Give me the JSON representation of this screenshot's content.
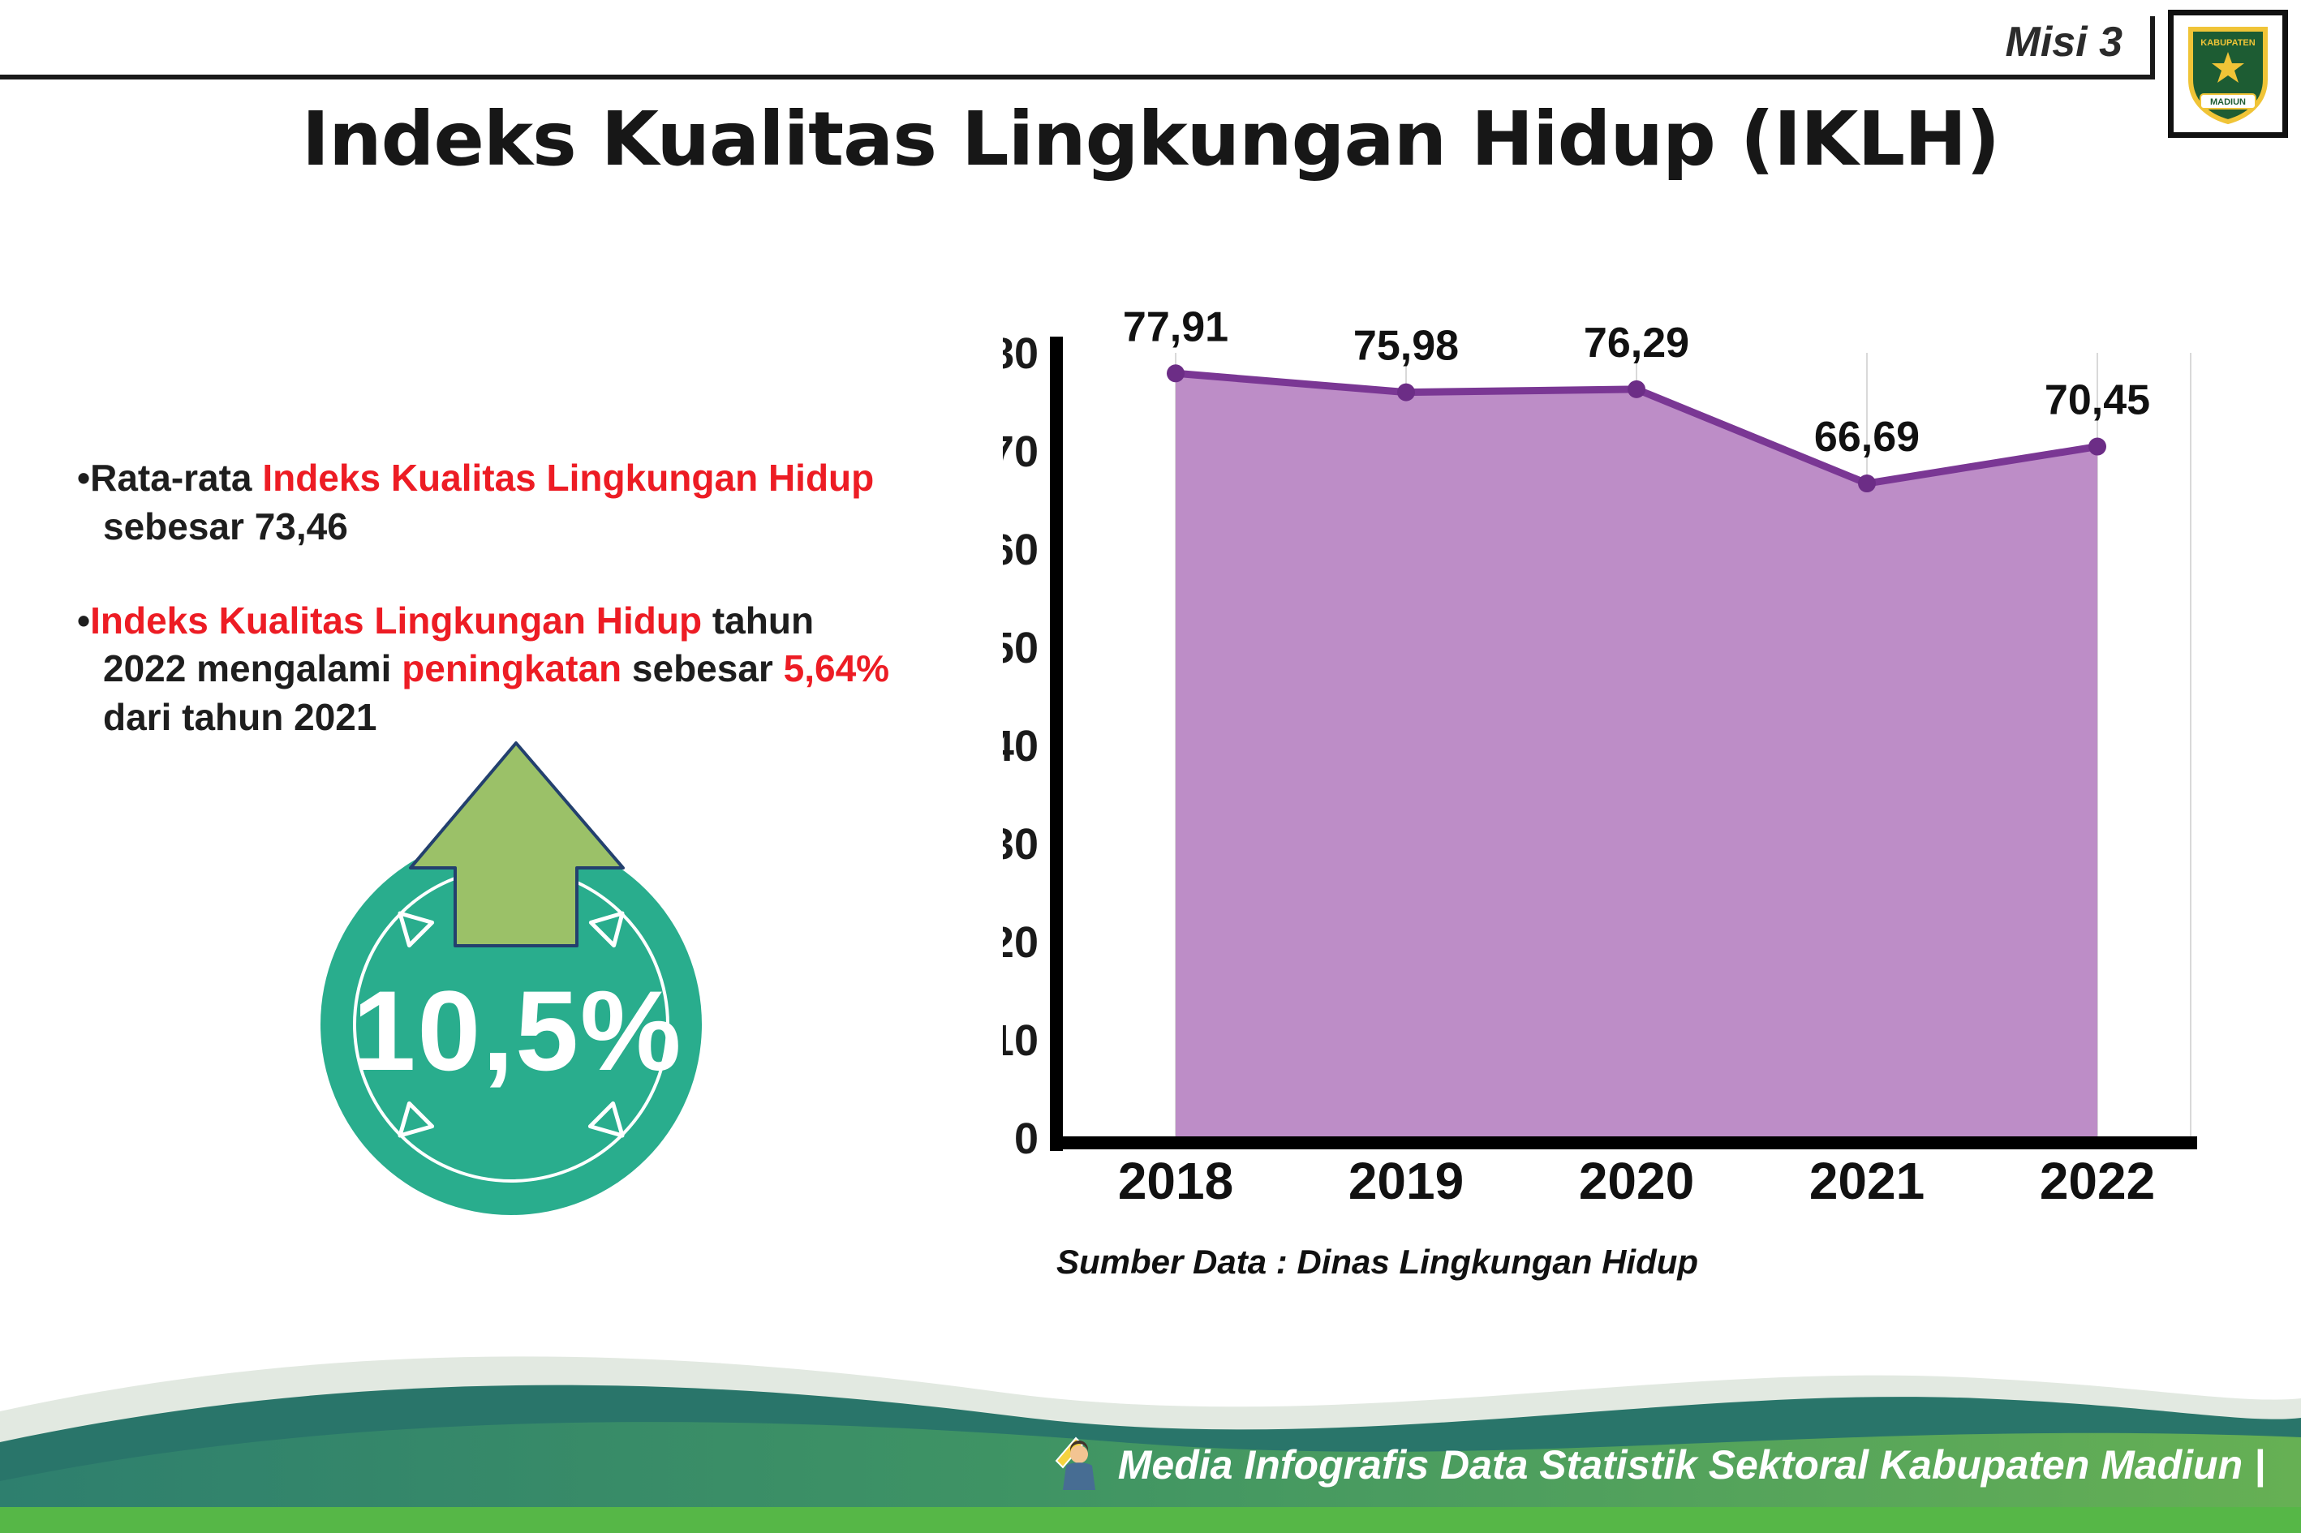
{
  "header": {
    "misi_label": "Misi 3",
    "title": "Indeks Kualitas Lingkungan Hidup (IKLH)",
    "logo": {
      "top_text": "KABUPATEN",
      "bottom_text": "MADIUN"
    }
  },
  "bullets": {
    "marker": "•",
    "b1_prefix": "Rata-rata ",
    "b1_highlight": "Indeks Kualitas Lingkungan Hidup",
    "b1_suffix": " sebesar 73,46",
    "b2_highlight1": "Indeks Kualitas Lingkungan Hidup",
    "b2_text1": " tahun 2022 mengalami ",
    "b2_highlight2": "peningkatan",
    "b2_text2": " sebesar ",
    "b2_highlight3": "5,64%",
    "b2_text3": " dari tahun 2021"
  },
  "badge": {
    "value": "10,5%",
    "circle_color": "#29ad8d",
    "arrow_color": "#9bc168"
  },
  "chart": {
    "source_note": "Sumber Data : Dinas Lingkungan Hidup"
  },
  "chart_data": {
    "type": "area",
    "title": "Indeks Kualitas Lingkungan Hidup (IKLH)",
    "categories": [
      "2018",
      "2019",
      "2020",
      "2021",
      "2022"
    ],
    "values": [
      77.91,
      75.98,
      76.29,
      66.69,
      70.45
    ],
    "value_labels": [
      "77,91",
      "75,98",
      "76,29",
      "66,69",
      "70,45"
    ],
    "xlabel": "",
    "ylabel": "",
    "ylim": [
      0,
      80
    ],
    "ytick_step": 10,
    "grid": "vertical-light",
    "legend": "none",
    "colors": {
      "area": "#bd8dc7",
      "line": "#7a3794",
      "point": "#6c2d86",
      "axis": "#000000",
      "grid": "#d9d9d9"
    }
  },
  "footer": {
    "credit": "Media Infografis Data Statistik Sektoral Kabupaten Madiun |"
  }
}
